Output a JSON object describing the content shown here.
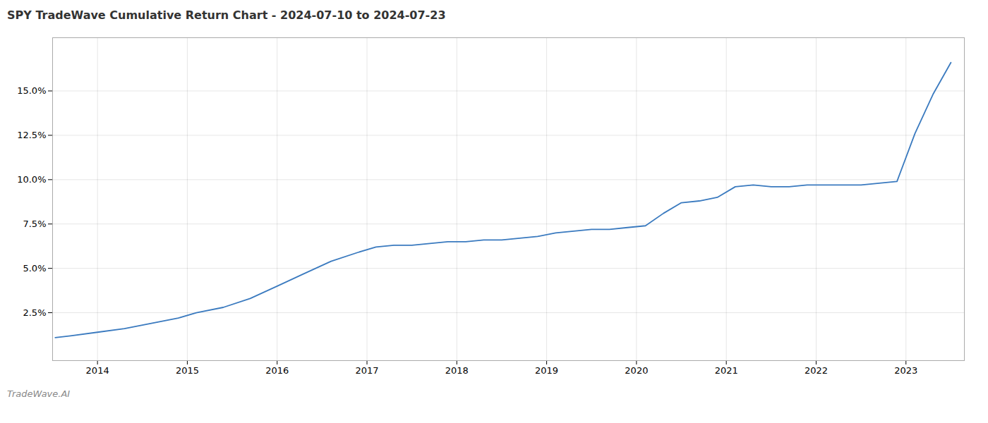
{
  "chart_data": {
    "type": "line",
    "title": "SPY TradeWave Cumulative Return Chart - 2024-07-10 to 2024-07-23",
    "annotations": [
      "TradeWave.AI"
    ],
    "color": "#3a7abf",
    "x": [
      2013.53,
      2013.7,
      2014.0,
      2014.3,
      2014.6,
      2014.9,
      2015.1,
      2015.4,
      2015.7,
      2016.0,
      2016.3,
      2016.6,
      2016.9,
      2017.1,
      2017.3,
      2017.5,
      2017.7,
      2017.9,
      2018.1,
      2018.3,
      2018.5,
      2018.7,
      2018.9,
      2019.1,
      2019.3,
      2019.5,
      2019.7,
      2019.9,
      2020.1,
      2020.3,
      2020.5,
      2020.7,
      2020.9,
      2021.1,
      2021.3,
      2021.5,
      2021.7,
      2021.9,
      2022.1,
      2022.3,
      2022.5,
      2022.7,
      2022.9,
      2023.1,
      2023.3,
      2023.5
    ],
    "values": [
      0.011,
      0.012,
      0.014,
      0.016,
      0.019,
      0.022,
      0.025,
      0.028,
      0.033,
      0.04,
      0.047,
      0.054,
      0.059,
      0.062,
      0.063,
      0.063,
      0.064,
      0.065,
      0.065,
      0.066,
      0.066,
      0.067,
      0.068,
      0.07,
      0.071,
      0.072,
      0.072,
      0.073,
      0.074,
      0.081,
      0.087,
      0.088,
      0.09,
      0.096,
      0.097,
      0.096,
      0.096,
      0.097,
      0.097,
      0.097,
      0.097,
      0.098,
      0.099,
      0.126,
      0.148,
      0.166
    ],
    "xlim": [
      2013.5,
      2023.65
    ],
    "ylim": [
      -0.002,
      0.18
    ],
    "xticks": [
      2014,
      2015,
      2016,
      2017,
      2018,
      2019,
      2020,
      2021,
      2022,
      2023
    ],
    "yticks": [
      {
        "value": 0.025,
        "label": "2.5%"
      },
      {
        "value": 0.05,
        "label": "5.0%"
      },
      {
        "value": 0.075,
        "label": "7.5%"
      },
      {
        "value": 0.1,
        "label": "10.0%"
      },
      {
        "value": 0.125,
        "label": "12.5%"
      },
      {
        "value": 0.15,
        "label": "15.0%"
      }
    ],
    "grid": true
  }
}
